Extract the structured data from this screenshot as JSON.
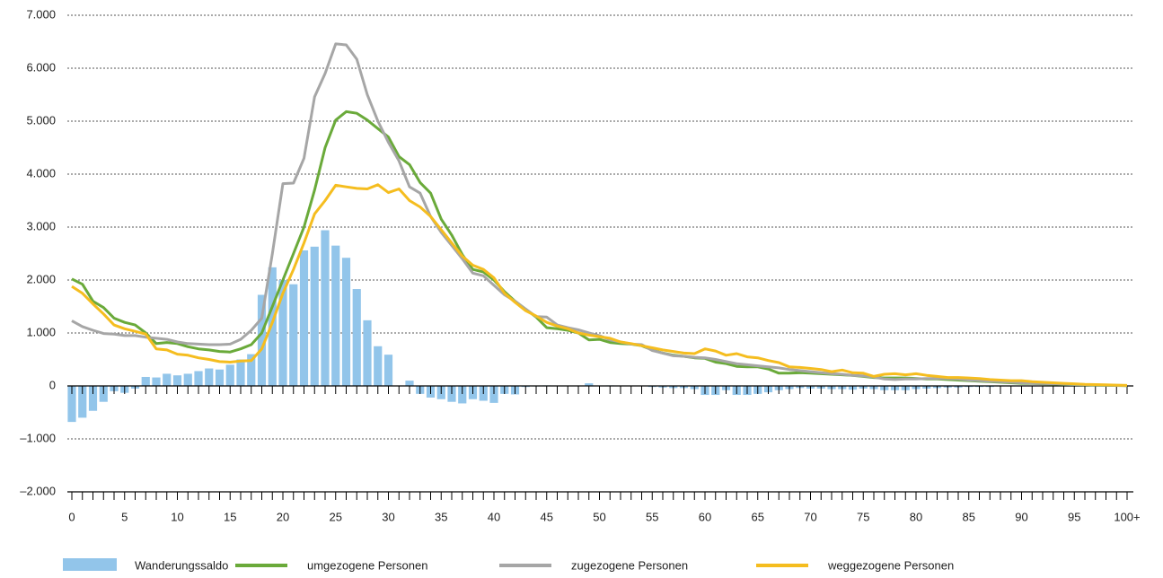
{
  "chart_data": {
    "type": "bar",
    "categories": [
      "0",
      null,
      null,
      null,
      null,
      "5",
      null,
      null,
      null,
      null,
      "10",
      null,
      null,
      null,
      null,
      "15",
      null,
      null,
      null,
      null,
      "20",
      null,
      null,
      null,
      null,
      "25",
      null,
      null,
      null,
      null,
      "30",
      null,
      null,
      null,
      null,
      "35",
      null,
      null,
      null,
      null,
      "40",
      null,
      null,
      null,
      null,
      "45",
      null,
      null,
      null,
      null,
      "50",
      null,
      null,
      null,
      null,
      "55",
      null,
      null,
      null,
      null,
      "60",
      null,
      null,
      null,
      null,
      "65",
      null,
      null,
      null,
      null,
      "70",
      null,
      null,
      null,
      null,
      "75",
      null,
      null,
      null,
      null,
      "80",
      null,
      null,
      null,
      null,
      "85",
      null,
      null,
      null,
      null,
      "90",
      null,
      null,
      null,
      null,
      "95",
      null,
      null,
      null,
      null,
      "100+"
    ],
    "series": [
      {
        "name": "Wanderungssaldo",
        "type": "bar",
        "color": "#92c5ea",
        "values": [
          -680,
          -600,
          -470,
          -300,
          -100,
          -130,
          -50,
          170,
          160,
          230,
          200,
          230,
          280,
          330,
          310,
          400,
          500,
          600,
          1720,
          2240,
          2000,
          1920,
          2560,
          2630,
          2940,
          2650,
          2420,
          1830,
          1240,
          750,
          590,
          0,
          100,
          -150,
          -220,
          -250,
          -300,
          -330,
          -250,
          -280,
          -320,
          -150,
          -160,
          -20,
          -10,
          10,
          0,
          0,
          0,
          50,
          0,
          10,
          0,
          0,
          0,
          -20,
          -30,
          -40,
          -40,
          -60,
          -170,
          -170,
          -80,
          -170,
          -170,
          -150,
          -120,
          -80,
          -60,
          -40,
          -50,
          -50,
          -60,
          -60,
          -70,
          -50,
          -60,
          -80,
          -80,
          -80,
          -60,
          -50,
          -40,
          -30,
          -30,
          -20,
          -20,
          -20,
          -10,
          -10,
          -10,
          -10,
          -5,
          -5,
          -5,
          0,
          0,
          0,
          0,
          0,
          0
        ]
      },
      {
        "name": "umgezogene Personen",
        "type": "line",
        "color": "#6aaa3a",
        "values": [
          2020,
          1920,
          1600,
          1480,
          1280,
          1200,
          1150,
          1000,
          800,
          820,
          800,
          740,
          700,
          680,
          650,
          640,
          700,
          780,
          1000,
          1500,
          2000,
          2500,
          3000,
          3700,
          4500,
          5020,
          5180,
          5150,
          5020,
          4860,
          4700,
          4330,
          4180,
          3840,
          3640,
          3150,
          2850,
          2480,
          2200,
          2150,
          2000,
          1780,
          1600,
          1450,
          1300,
          1100,
          1080,
          1050,
          1000,
          870,
          880,
          820,
          800,
          790,
          760,
          680,
          620,
          580,
          560,
          530,
          520,
          450,
          420,
          370,
          360,
          360,
          320,
          240,
          240,
          250,
          240,
          230,
          220,
          210,
          200,
          180,
          160,
          150,
          150,
          150,
          140,
          130,
          130,
          120,
          110,
          100,
          90,
          80,
          70,
          60,
          50,
          45,
          40,
          35,
          30,
          25,
          20,
          15,
          10,
          8,
          5
        ]
      },
      {
        "name": "zugezogene Personen",
        "type": "line",
        "color": "#a6a6a6",
        "values": [
          1230,
          1120,
          1050,
          990,
          980,
          950,
          950,
          920,
          900,
          880,
          830,
          800,
          790,
          780,
          780,
          790,
          880,
          1050,
          1280,
          2500,
          3820,
          3830,
          4300,
          5460,
          5900,
          6460,
          6440,
          6170,
          5500,
          5000,
          4600,
          4250,
          3760,
          3640,
          3200,
          2900,
          2650,
          2400,
          2130,
          2080,
          1900,
          1720,
          1600,
          1450,
          1310,
          1300,
          1150,
          1100,
          1060,
          1000,
          950,
          870,
          830,
          790,
          780,
          670,
          620,
          570,
          560,
          540,
          530,
          500,
          460,
          420,
          400,
          380,
          360,
          340,
          310,
          290,
          270,
          250,
          230,
          220,
          200,
          190,
          170,
          130,
          120,
          130,
          130,
          140,
          140,
          140,
          130,
          110,
          100,
          90,
          80,
          70,
          60,
          50,
          45,
          40,
          35,
          30,
          25,
          20,
          15,
          10,
          8
        ]
      },
      {
        "name": "weggezogene Personen",
        "type": "line",
        "color": "#f5bd1f",
        "values": [
          1880,
          1750,
          1550,
          1360,
          1150,
          1080,
          1030,
          980,
          700,
          680,
          600,
          580,
          530,
          500,
          460,
          450,
          470,
          480,
          700,
          1200,
          1750,
          2200,
          2700,
          3250,
          3500,
          3790,
          3760,
          3730,
          3720,
          3800,
          3650,
          3720,
          3500,
          3380,
          3200,
          2950,
          2700,
          2450,
          2280,
          2200,
          2040,
          1750,
          1580,
          1420,
          1320,
          1200,
          1130,
          1080,
          1000,
          960,
          930,
          900,
          830,
          800,
          760,
          720,
          680,
          650,
          620,
          610,
          700,
          660,
          580,
          610,
          550,
          530,
          480,
          440,
          360,
          350,
          330,
          310,
          270,
          300,
          250,
          240,
          180,
          220,
          230,
          210,
          230,
          200,
          180,
          160,
          160,
          150,
          140,
          120,
          110,
          100,
          100,
          80,
          70,
          60,
          50,
          40,
          30,
          25,
          20,
          15,
          10
        ]
      }
    ],
    "ylim": [
      -2000,
      7000
    ],
    "yticks": [
      {
        "value": -2000,
        "label": "–2.000"
      },
      {
        "value": -1000,
        "label": "–1.000"
      },
      0,
      {
        "value": 1000,
        "label": "1.000"
      },
      {
        "value": 2000,
        "label": "2.000"
      },
      {
        "value": 3000,
        "label": "3.000"
      },
      {
        "value": 4000,
        "label": "4.000"
      },
      {
        "value": 5000,
        "label": "5.000"
      },
      {
        "value": 6000,
        "label": "6.000"
      },
      {
        "value": 7000,
        "label": "7.000"
      }
    ],
    "grid": true
  }
}
